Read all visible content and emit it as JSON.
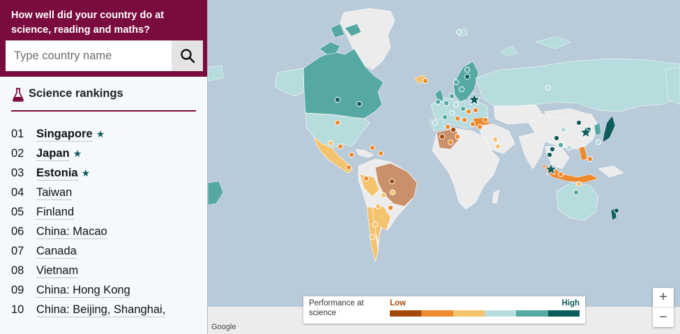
{
  "header": {
    "title": "How well did your country do at science, reading and maths?"
  },
  "search": {
    "placeholder": "Type country name",
    "icon": "search-icon"
  },
  "rankings": {
    "title": "Science rankings",
    "icon": "flask-icon",
    "items": [
      {
        "num": "01",
        "name": "Singapore",
        "bold": true,
        "star": true
      },
      {
        "num": "02",
        "name": "Japan",
        "bold": true,
        "star": true
      },
      {
        "num": "03",
        "name": "Estonia",
        "bold": true,
        "star": true
      },
      {
        "num": "04",
        "name": "Taiwan",
        "bold": false,
        "star": false
      },
      {
        "num": "05",
        "name": "Finland",
        "bold": false,
        "star": false
      },
      {
        "num": "06",
        "name": "China: Macao",
        "bold": false,
        "star": false
      },
      {
        "num": "07",
        "name": "Canada",
        "bold": false,
        "star": false
      },
      {
        "num": "08",
        "name": "Vietnam",
        "bold": false,
        "star": false
      },
      {
        "num": "09",
        "name": "China: Hong Kong",
        "bold": false,
        "star": false
      },
      {
        "num": "10",
        "name": "China: Beijing, Shanghai,",
        "bold": false,
        "star": false
      }
    ]
  },
  "legend": {
    "label": "Performance at science",
    "low": "Low",
    "high": "High",
    "colors": [
      "#a34a06",
      "#ee8a2e",
      "#f4c36e",
      "#b6dcdd",
      "#56a9a3",
      "#0d5b5b"
    ]
  },
  "map": {
    "attribution": "Google",
    "zoom_in": "+",
    "zoom_out": "−",
    "colors": {
      "ocean": "#b9cad9",
      "land": "#ececec",
      "high": "#0d5b5b",
      "mid_high": "#56a9a3",
      "light_high": "#b6dcdd",
      "light_low": "#f4c36e",
      "mid_low": "#ee8a2e",
      "low": "#a34a06"
    }
  }
}
